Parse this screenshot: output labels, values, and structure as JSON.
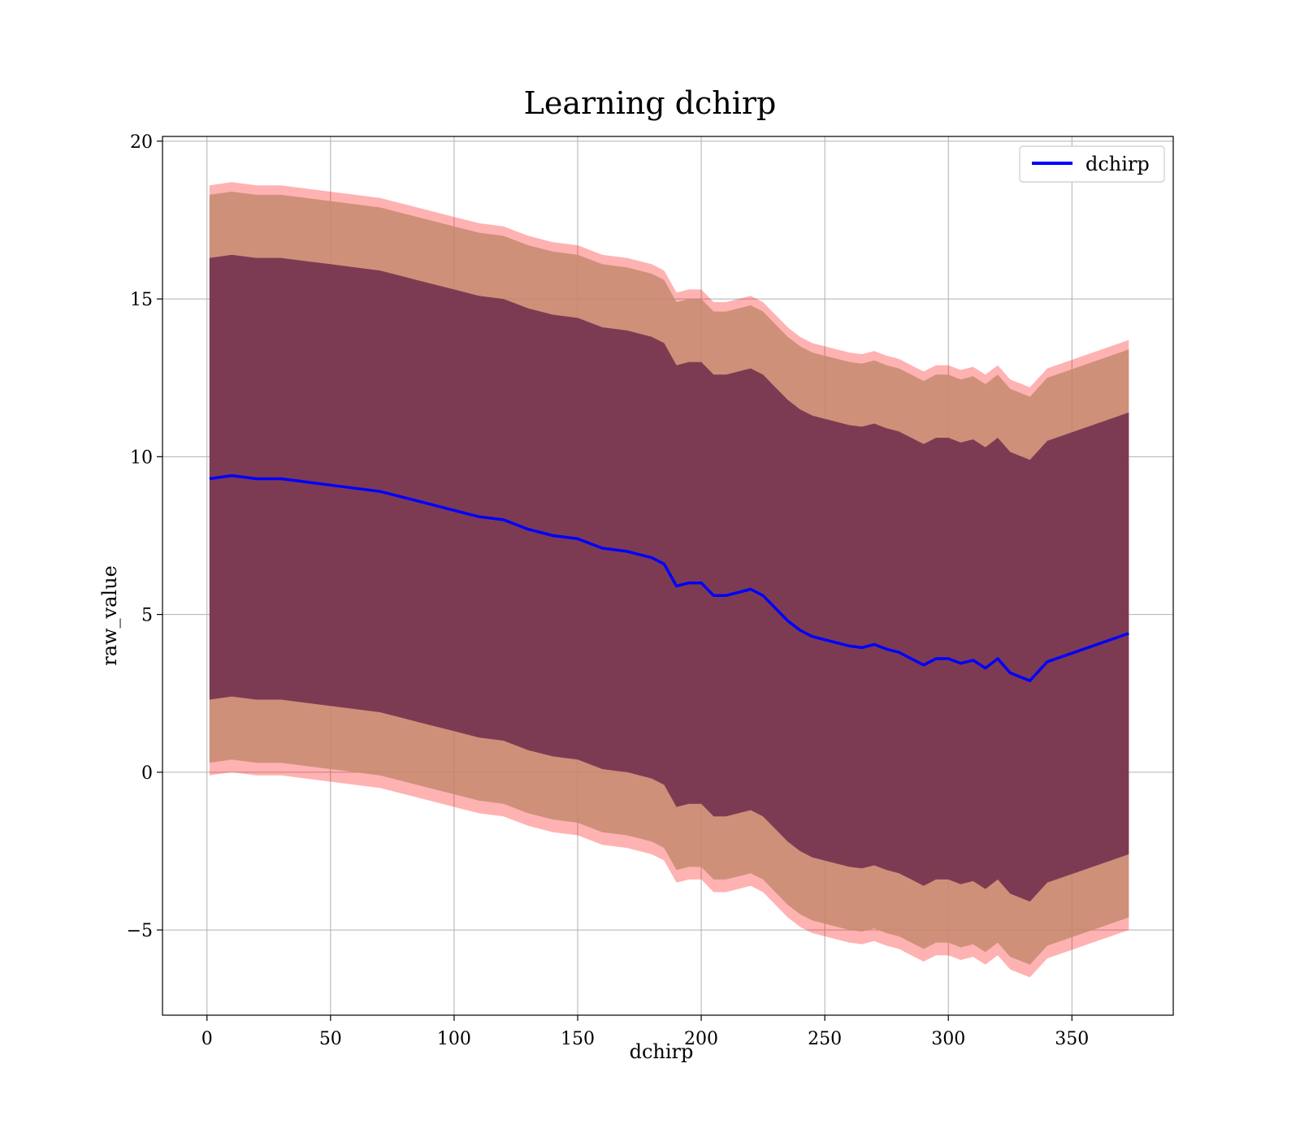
{
  "chart_data": {
    "type": "line",
    "title": "Learning dchirp",
    "xlabel": "dchirp",
    "ylabel": "raw_value",
    "xlim": [
      -18,
      391
    ],
    "ylim": [
      -7.7,
      20.15
    ],
    "xticks": [
      0,
      50,
      100,
      150,
      200,
      250,
      300,
      350
    ],
    "yticks": [
      -5,
      0,
      5,
      10,
      15,
      20
    ],
    "ytick_labels": [
      "−5",
      "0",
      "5",
      "10",
      "15",
      "20"
    ],
    "grid": true,
    "legend": {
      "placement": "top-right",
      "entries": [
        "dchirp"
      ]
    },
    "colors": {
      "line": "#0000ff",
      "band_outer": "#ff0000",
      "band_middle": "#c58a6e",
      "band_inner": "#6e2d4c"
    },
    "series": [
      {
        "name": "dchirp",
        "x": [
          1,
          10,
          20,
          30,
          40,
          50,
          60,
          70,
          80,
          90,
          100,
          110,
          120,
          130,
          140,
          150,
          160,
          170,
          180,
          185,
          190,
          195,
          200,
          205,
          210,
          220,
          225,
          230,
          235,
          240,
          245,
          250,
          255,
          260,
          265,
          270,
          275,
          280,
          285,
          290,
          295,
          300,
          305,
          310,
          315,
          320,
          325,
          333,
          340,
          373
        ],
        "y": [
          9.3,
          9.4,
          9.3,
          9.3,
          9.2,
          9.1,
          9.0,
          8.9,
          8.7,
          8.5,
          8.3,
          8.1,
          8.0,
          7.7,
          7.5,
          7.4,
          7.1,
          7.0,
          6.8,
          6.6,
          5.9,
          6.0,
          6.0,
          5.6,
          5.6,
          5.8,
          5.6,
          5.2,
          4.8,
          4.5,
          4.3,
          4.2,
          4.1,
          4.0,
          3.95,
          4.05,
          3.9,
          3.8,
          3.6,
          3.4,
          3.6,
          3.6,
          3.45,
          3.55,
          3.3,
          3.6,
          3.15,
          2.9,
          3.5,
          4.4
        ]
      }
    ],
    "bands": [
      {
        "offset_upper": 9.3,
        "offset_lower": -9.4
      },
      {
        "offset_upper": 9.0,
        "offset_lower": -9.0
      },
      {
        "offset_upper": 7.0,
        "offset_lower": -7.0
      }
    ]
  }
}
